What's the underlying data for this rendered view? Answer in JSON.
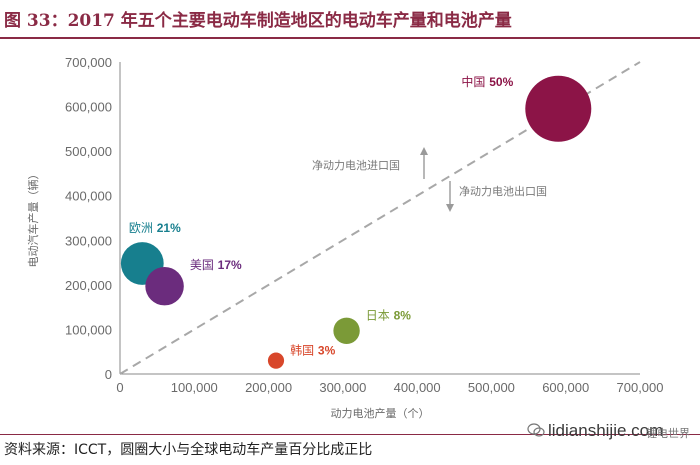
{
  "header": {
    "title": "图 33：2017 年五个主要电动车制造地区的电动车产量和电池产量"
  },
  "footer": {
    "source": "资料来源：ICCT，圆圈大小与全球电动车产量百分比成正比",
    "watermark": "lidianshijie.com",
    "watermark_sub": "锂电世界"
  },
  "chart_data": {
    "type": "scatter",
    "xlabel": "动力电池产量（个）",
    "ylabel": "电动汽车产量（辆）",
    "xlim": [
      0,
      700000
    ],
    "ylim": [
      0,
      700000
    ],
    "x_ticks": [
      "0",
      "100,000",
      "200,000",
      "300,000",
      "400,000",
      "500,000",
      "600,000",
      "700,000"
    ],
    "y_ticks": [
      "0",
      "100,000",
      "200,000",
      "300,000",
      "400,000",
      "500,000",
      "600,000",
      "700,000"
    ],
    "grid": false,
    "reference_line": "y = x",
    "annotations": [
      "净动力电池进口国",
      "净动力电池出口国"
    ],
    "points": [
      {
        "name": "中国",
        "pct": "50%",
        "share": 50,
        "x": 590000,
        "y": 595000,
        "color": "#8c1447"
      },
      {
        "name": "欧洲",
        "pct": "21%",
        "share": 21,
        "x": 30000,
        "y": 248000,
        "color": "#177f8e"
      },
      {
        "name": "美国",
        "pct": "17%",
        "share": 17,
        "x": 60000,
        "y": 197000,
        "color": "#6b2c7d"
      },
      {
        "name": "日本",
        "pct": "8%",
        "share": 8,
        "x": 305000,
        "y": 97000,
        "color": "#7b9a37"
      },
      {
        "name": "韩国",
        "pct": "3%",
        "share": 3,
        "x": 210000,
        "y": 30000,
        "color": "#d8472b"
      }
    ]
  }
}
